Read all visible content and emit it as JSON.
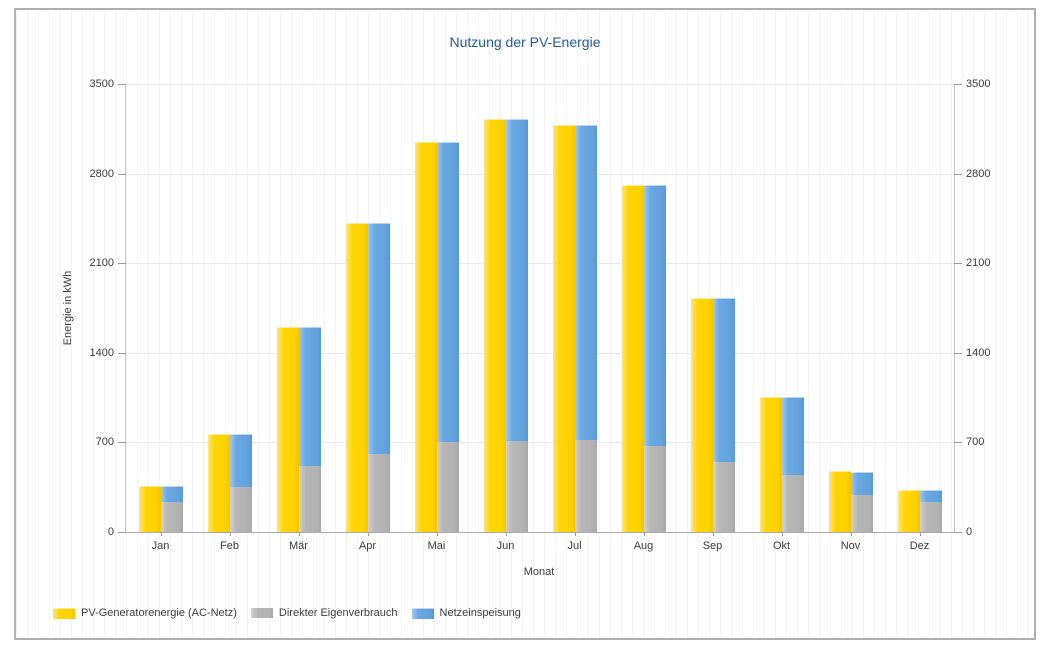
{
  "panel": {
    "border_color": "#b0b0b0",
    "background_color": "#ffffff"
  },
  "colors": {
    "title_text": "#1f5aa8",
    "axis_text": "#3b3b3b",
    "gridline": "#e9e9ec",
    "pv_yellow": "#ffd508",
    "self_consumption_gray": "#b5b5b5",
    "feed_in_blue": "#69a8e0"
  },
  "chart_data": {
    "type": "bar",
    "title": "Nutzung der PV-Energie",
    "xlabel": "Monat",
    "ylabel": "Energie in kWh",
    "ylim": [
      0,
      3500
    ],
    "yticks": [
      0,
      700,
      1400,
      2100,
      2800,
      3500
    ],
    "dual_y_axis": true,
    "grid": "horizontal gridlines + fine vertical background stripes",
    "legend_position": "bottom-left",
    "bar_layout": "per month two bars: total PV bar (yellow) beside a stacked bar (gray self-consumption bottom + blue grid feed-in top); stack equals yellow total",
    "categories": [
      "Jan",
      "Feb",
      "Mär",
      "Apr",
      "Mai",
      "Jun",
      "Jul",
      "Aug",
      "Sep",
      "Okt",
      "Nov",
      "Dez"
    ],
    "series": [
      {
        "name": "PV-Generatorenergie (AC-Netz)",
        "role": "total",
        "color": "#ffd508",
        "values": [
          355,
          755,
          1595,
          2410,
          3040,
          3220,
          3170,
          2700,
          1820,
          1045,
          465,
          320
        ]
      },
      {
        "name": "Direkter Eigenverbrauch",
        "role": "stack-bottom",
        "color": "#b5b5b5",
        "values": [
          235,
          350,
          515,
          610,
          700,
          710,
          720,
          670,
          550,
          445,
          290,
          235
        ]
      },
      {
        "name": "Netzeinspeisung",
        "role": "stack-top",
        "color": "#69a8e0",
        "values": [
          120,
          405,
          1080,
          1800,
          2340,
          2510,
          2450,
          2030,
          1270,
          600,
          175,
          85
        ]
      }
    ]
  }
}
